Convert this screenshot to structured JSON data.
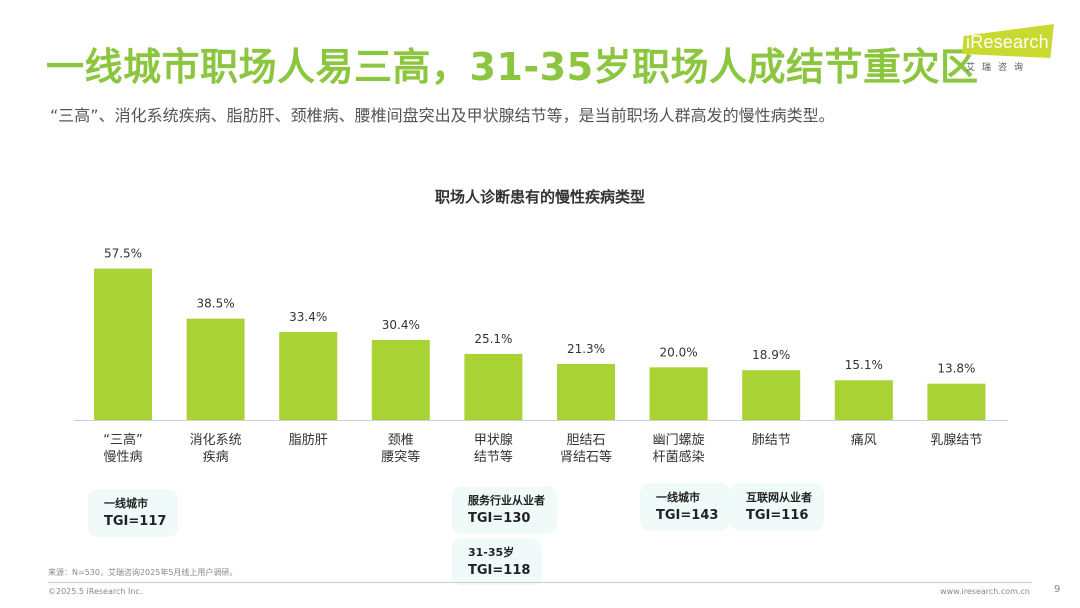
{
  "title": "一线城市职场人易三高，31-35岁职场人成结节重灾区",
  "subtitle": "“三高”、消化系统疾病、脂肪肝、颈椎病、腰椎间盘突出及甲状腺结节等，是当前职场人群高发的慢性病类型。",
  "logo": {
    "brand": "iResearch",
    "sub": "艾瑞咨询"
  },
  "colors": {
    "title": "#8cc63e",
    "bar": "#a9d235",
    "tgi_bg": "#f0faf8"
  },
  "chart_data": {
    "type": "bar",
    "title": "职场人诊断患有的慢性疾病类型",
    "categories": [
      [
        "“三高”",
        "慢性病"
      ],
      [
        "消化系统",
        "疾病"
      ],
      [
        "脂肪肝"
      ],
      [
        "颈椎",
        "腰突等"
      ],
      [
        "甲状腺",
        "结节等"
      ],
      [
        "胆结石",
        "肾结石等"
      ],
      [
        "幽门螺旋",
        "杆菌感染"
      ],
      [
        "肺结节"
      ],
      [
        "痛风"
      ],
      [
        "乳腺结节"
      ]
    ],
    "values": [
      57.5,
      38.5,
      33.4,
      30.4,
      25.1,
      21.3,
      20.0,
      18.9,
      15.1,
      13.8
    ],
    "value_labels": [
      "57.5%",
      "38.5%",
      "33.4%",
      "30.4%",
      "25.1%",
      "21.3%",
      "20.0%",
      "18.9%",
      "15.1%",
      "13.8%"
    ],
    "ylim": [
      0,
      60
    ],
    "grid": false,
    "xlabel": "",
    "ylabel": ""
  },
  "tgi_callouts": [
    {
      "label": "一线城市",
      "value": "TGI=117"
    },
    {
      "label": "服务行业从业者",
      "value": "TGI=130"
    },
    {
      "label": "31-35岁",
      "value": "TGI=118"
    },
    {
      "label": "一线城市",
      "value": "TGI=143"
    },
    {
      "label": "互联网从业者",
      "value": "TGI=116"
    }
  ],
  "footer": {
    "source": "来源：N=530，艾瑞咨询2025年5月线上用户调研。",
    "copyright": "©2025.5 iResearch Inc.",
    "website": "www.iresearch.com.cn",
    "page": "9"
  }
}
